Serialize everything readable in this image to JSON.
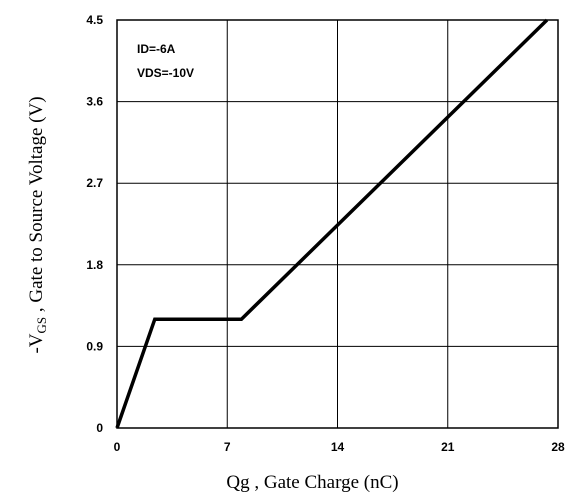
{
  "chart_data": {
    "type": "line",
    "title": "",
    "xlabel": "Qg , Gate Charge (nC)",
    "ylabel_prefix": "-V",
    "ylabel_sub": "GS",
    "ylabel_rest": " , Gate to Source Voltage (V)",
    "xlim": [
      0,
      28
    ],
    "ylim": [
      0,
      4.5
    ],
    "x_ticks": [
      "0",
      "7",
      "14",
      "21",
      "28"
    ],
    "y_ticks": [
      "0",
      "0.9",
      "1.8",
      "2.7",
      "3.6",
      "4.5"
    ],
    "grid": true,
    "annotations": [
      "ID=-6A",
      "VDS=-10V"
    ],
    "series": [
      {
        "x": [
          0,
          2.4,
          7.9,
          27.3
        ],
        "y": [
          0,
          1.2,
          1.2,
          4.5
        ]
      }
    ]
  }
}
